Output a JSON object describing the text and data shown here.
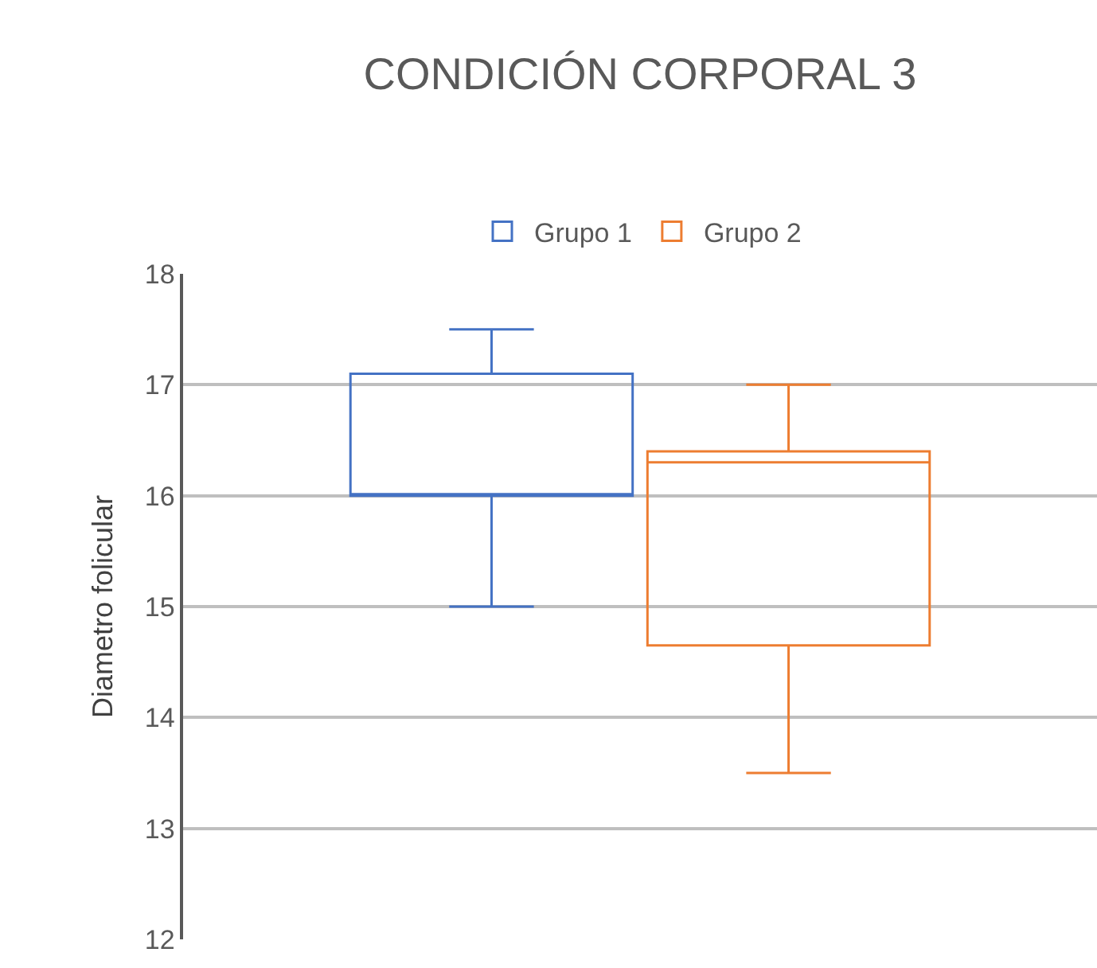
{
  "chart_data": {
    "type": "box",
    "title": "CONDICIÓN CORPORAL 3",
    "ylabel": "Diametro folicular",
    "categories": [
      null
    ],
    "series": [
      {
        "name": "Grupo 1",
        "color": "#4472c4",
        "boxes": [
          {
            "low": 15,
            "q1": 16,
            "median": 16,
            "q3": 17.1,
            "high": 17.5
          }
        ]
      },
      {
        "name": "Grupo 2",
        "color": "#ed7d31",
        "boxes": [
          {
            "low": 13.5,
            "q1": 14.65,
            "median": 16.3,
            "q3": 16.4,
            "high": 17
          }
        ]
      }
    ],
    "ylim": [
      12,
      18
    ],
    "yticks": [
      12,
      13,
      14,
      15,
      16,
      17,
      18
    ],
    "grid": "y",
    "legend": "top",
    "tick_labels": "y"
  }
}
